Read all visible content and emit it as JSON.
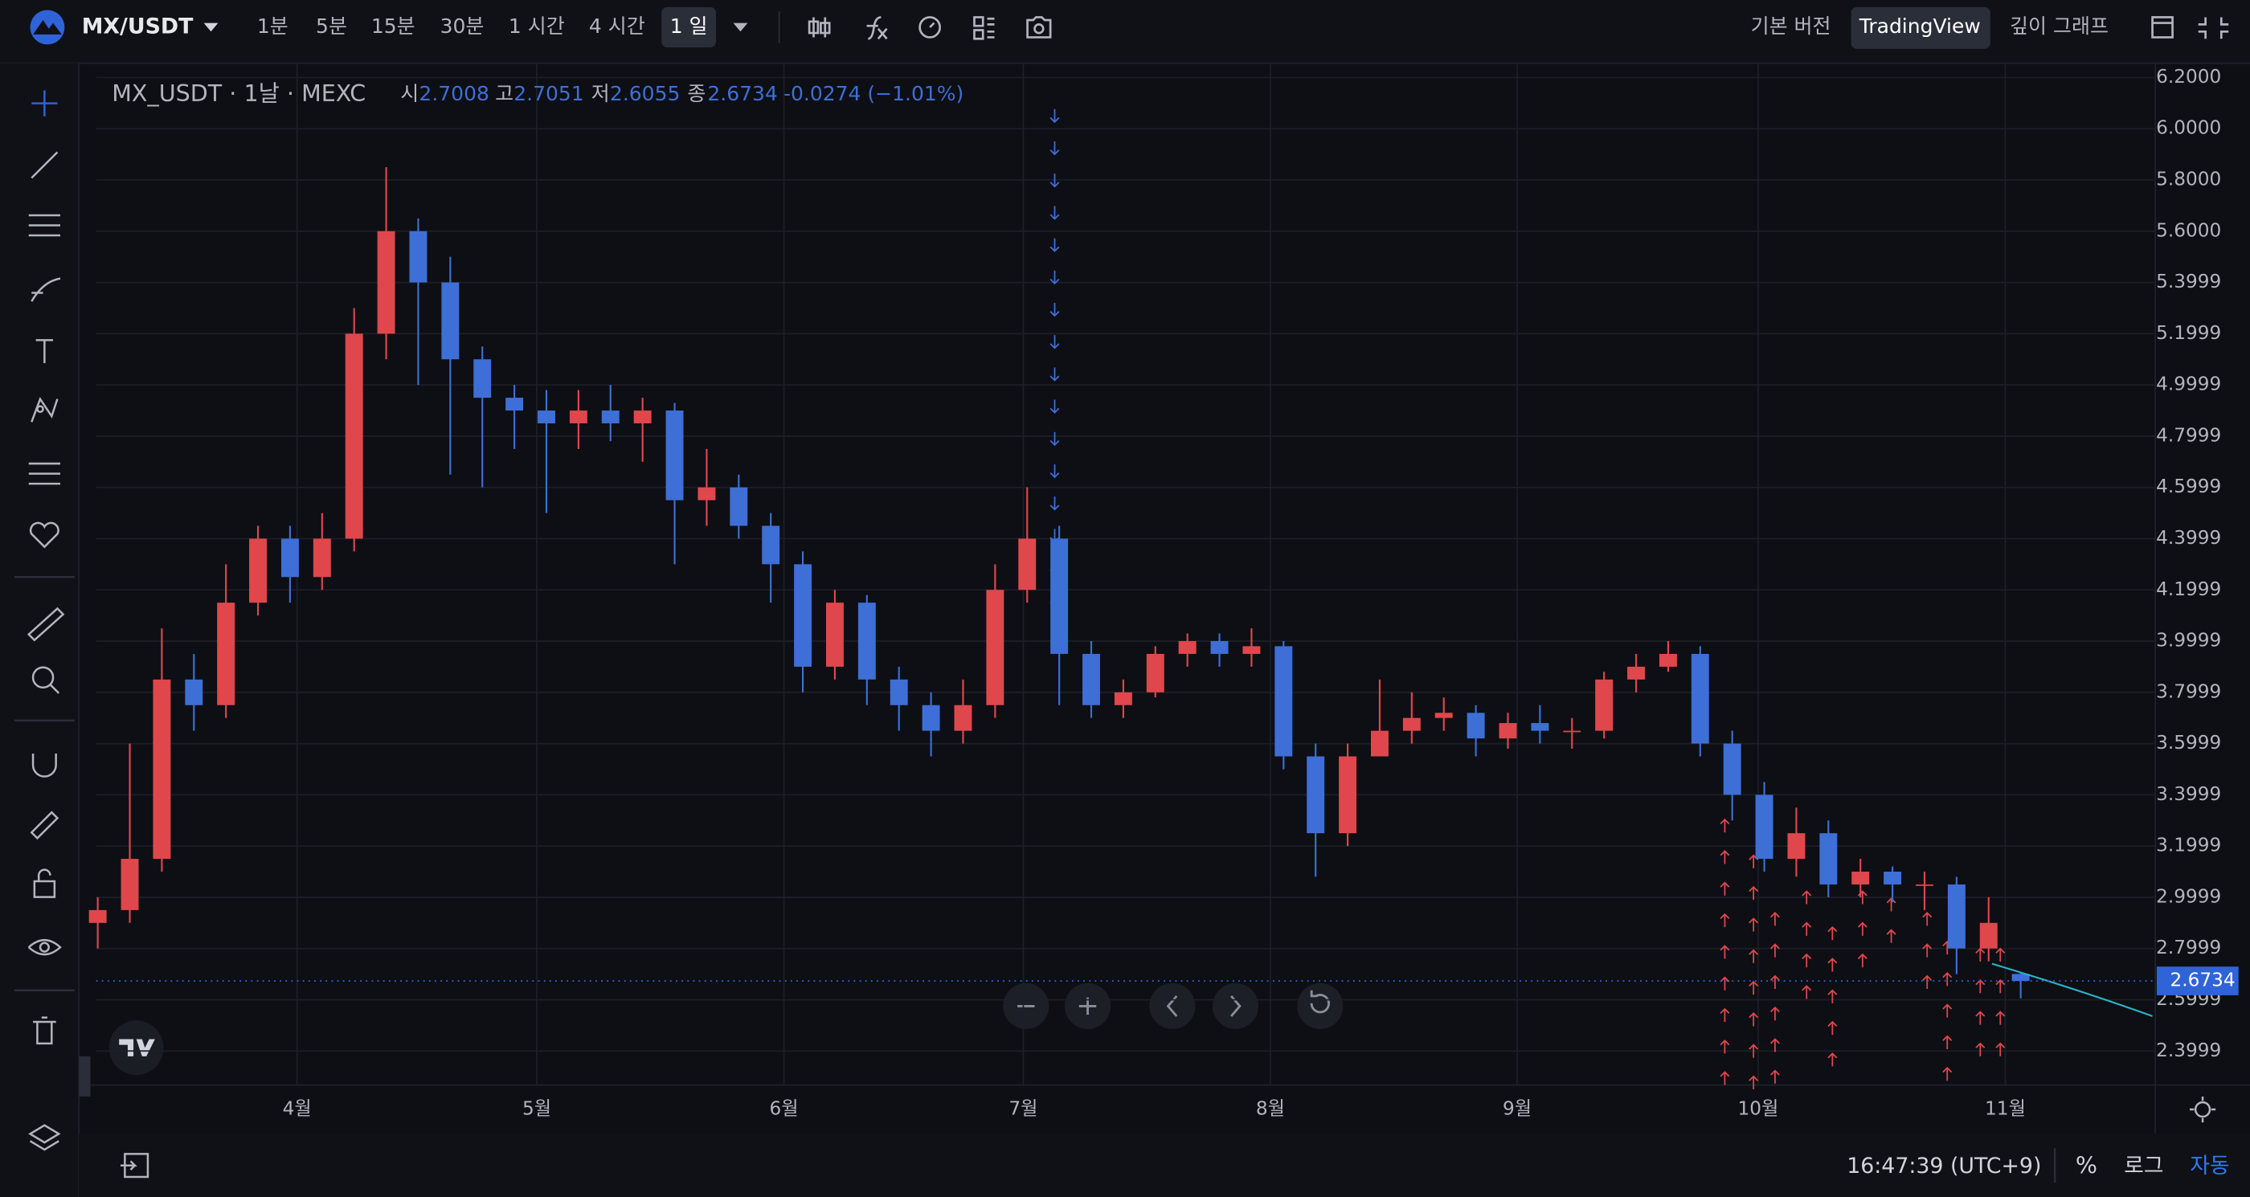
{
  "toolbar": {
    "symbol": "MX/USDT",
    "intervals": [
      "1분",
      "5분",
      "15분",
      "30분",
      "1 시간",
      "4 시간",
      "1 일"
    ],
    "views": [
      "기본 버전",
      "TradingView",
      "깊이 그래프"
    ]
  },
  "chart_data": {
    "type": "candlestick",
    "title": "MX_USDT · 1날 · MEXC",
    "ohlc_labels": [
      "시",
      "고",
      "저",
      "종"
    ],
    "change": "-0.0274 (−1.01%)",
    "up_color": "#e0474c",
    "down_color": "#3d6fd6",
    "open": [
      2.9,
      2.95,
      3.15,
      3.85,
      3.75,
      4.15,
      4.4,
      4.25,
      4.4,
      5.2,
      5.6,
      5.4,
      5.1,
      4.95,
      4.9,
      4.85,
      4.9,
      4.85,
      4.9,
      4.55,
      4.6,
      4.45,
      4.3,
      3.9,
      4.15,
      3.85,
      3.75,
      3.65,
      3.75,
      4.2,
      4.4,
      3.95,
      3.75,
      3.8,
      3.95,
      4.0,
      3.95,
      3.98,
      3.55,
      3.25,
      3.55,
      3.65,
      3.7,
      3.72,
      3.62,
      3.68,
      3.65,
      3.65,
      3.85,
      3.9,
      3.95,
      3.6,
      3.4,
      3.15,
      3.25,
      3.05,
      3.1,
      3.05,
      3.05,
      2.8,
      2.7008
    ],
    "high": [
      3.0,
      3.6,
      4.05,
      3.95,
      4.3,
      4.45,
      4.45,
      4.5,
      5.3,
      5.85,
      5.65,
      5.5,
      5.15,
      5.0,
      4.98,
      4.98,
      5.0,
      4.95,
      4.93,
      4.75,
      4.65,
      4.5,
      4.35,
      4.2,
      4.18,
      3.9,
      3.8,
      3.85,
      4.3,
      4.6,
      4.45,
      4.0,
      3.85,
      3.98,
      4.03,
      4.03,
      4.05,
      4.0,
      3.6,
      3.6,
      3.85,
      3.8,
      3.78,
      3.75,
      3.72,
      3.75,
      3.7,
      3.88,
      3.95,
      4.0,
      3.98,
      3.65,
      3.45,
      3.35,
      3.3,
      3.15,
      3.12,
      3.1,
      3.08,
      3.0,
      2.7051
    ],
    "low": [
      2.8,
      2.9,
      3.1,
      3.65,
      3.7,
      4.1,
      4.15,
      4.2,
      4.35,
      5.1,
      5.0,
      4.65,
      4.6,
      4.75,
      4.5,
      4.75,
      4.78,
      4.7,
      4.3,
      4.45,
      4.4,
      4.15,
      3.8,
      3.85,
      3.75,
      3.65,
      3.55,
      3.6,
      3.7,
      4.15,
      3.75,
      3.7,
      3.7,
      3.78,
      3.9,
      3.9,
      3.9,
      3.5,
      3.08,
      3.2,
      3.55,
      3.6,
      3.65,
      3.55,
      3.58,
      3.6,
      3.58,
      3.62,
      3.8,
      3.88,
      3.55,
      3.3,
      3.1,
      3.08,
      3.0,
      3.0,
      2.98,
      2.95,
      2.7,
      2.75,
      2.6055
    ],
    "close": [
      2.95,
      3.15,
      3.85,
      3.75,
      4.15,
      4.4,
      4.25,
      4.4,
      5.2,
      5.6,
      5.4,
      5.1,
      4.95,
      4.9,
      4.85,
      4.9,
      4.85,
      4.9,
      4.55,
      4.6,
      4.45,
      4.3,
      3.9,
      4.15,
      3.85,
      3.75,
      3.65,
      3.75,
      4.2,
      4.4,
      3.95,
      3.75,
      3.8,
      3.95,
      4.0,
      3.95,
      3.98,
      3.55,
      3.25,
      3.55,
      3.65,
      3.7,
      3.72,
      3.62,
      3.68,
      3.65,
      3.65,
      3.85,
      3.9,
      3.95,
      3.6,
      3.4,
      3.15,
      3.25,
      3.05,
      3.1,
      3.05,
      3.05,
      2.8,
      2.9,
      2.6734
    ],
    "last_price": 2.6734,
    "xlim": [
      -0.05,
      64.2
    ],
    "xticks": [
      {
        "value": 6.22,
        "label": "4월"
      },
      {
        "value": 13.7,
        "label": "5월"
      },
      {
        "value": 21.41,
        "label": "6월"
      },
      {
        "value": 28.88,
        "label": "7월"
      },
      {
        "value": 36.59,
        "label": "8월"
      },
      {
        "value": 44.29,
        "label": "9월"
      },
      {
        "value": 51.81,
        "label": "10월"
      },
      {
        "value": 59.52,
        "label": "11월"
      }
    ],
    "ylim": [
      2.267,
      6.256
    ],
    "yticks": [
      {
        "value": 6.2,
        "label": "6.2000"
      },
      {
        "value": 6.0,
        "label": "6.0000"
      },
      {
        "value": 5.8,
        "label": "5.8000"
      },
      {
        "value": 5.6,
        "label": "5.6000"
      },
      5.3999,
      5.1999,
      4.9999,
      4.7999,
      4.5999,
      4.3999,
      4.1999,
      3.9999,
      3.7999,
      3.5999,
      3.3999,
      3.1999,
      2.9999,
      2.7999,
      2.5999,
      2.3999
    ],
    "grid": true
  },
  "status": {
    "time": "16:47:39 (UTC+9)",
    "percent": "%",
    "log": "로그",
    "auto": "자동"
  }
}
